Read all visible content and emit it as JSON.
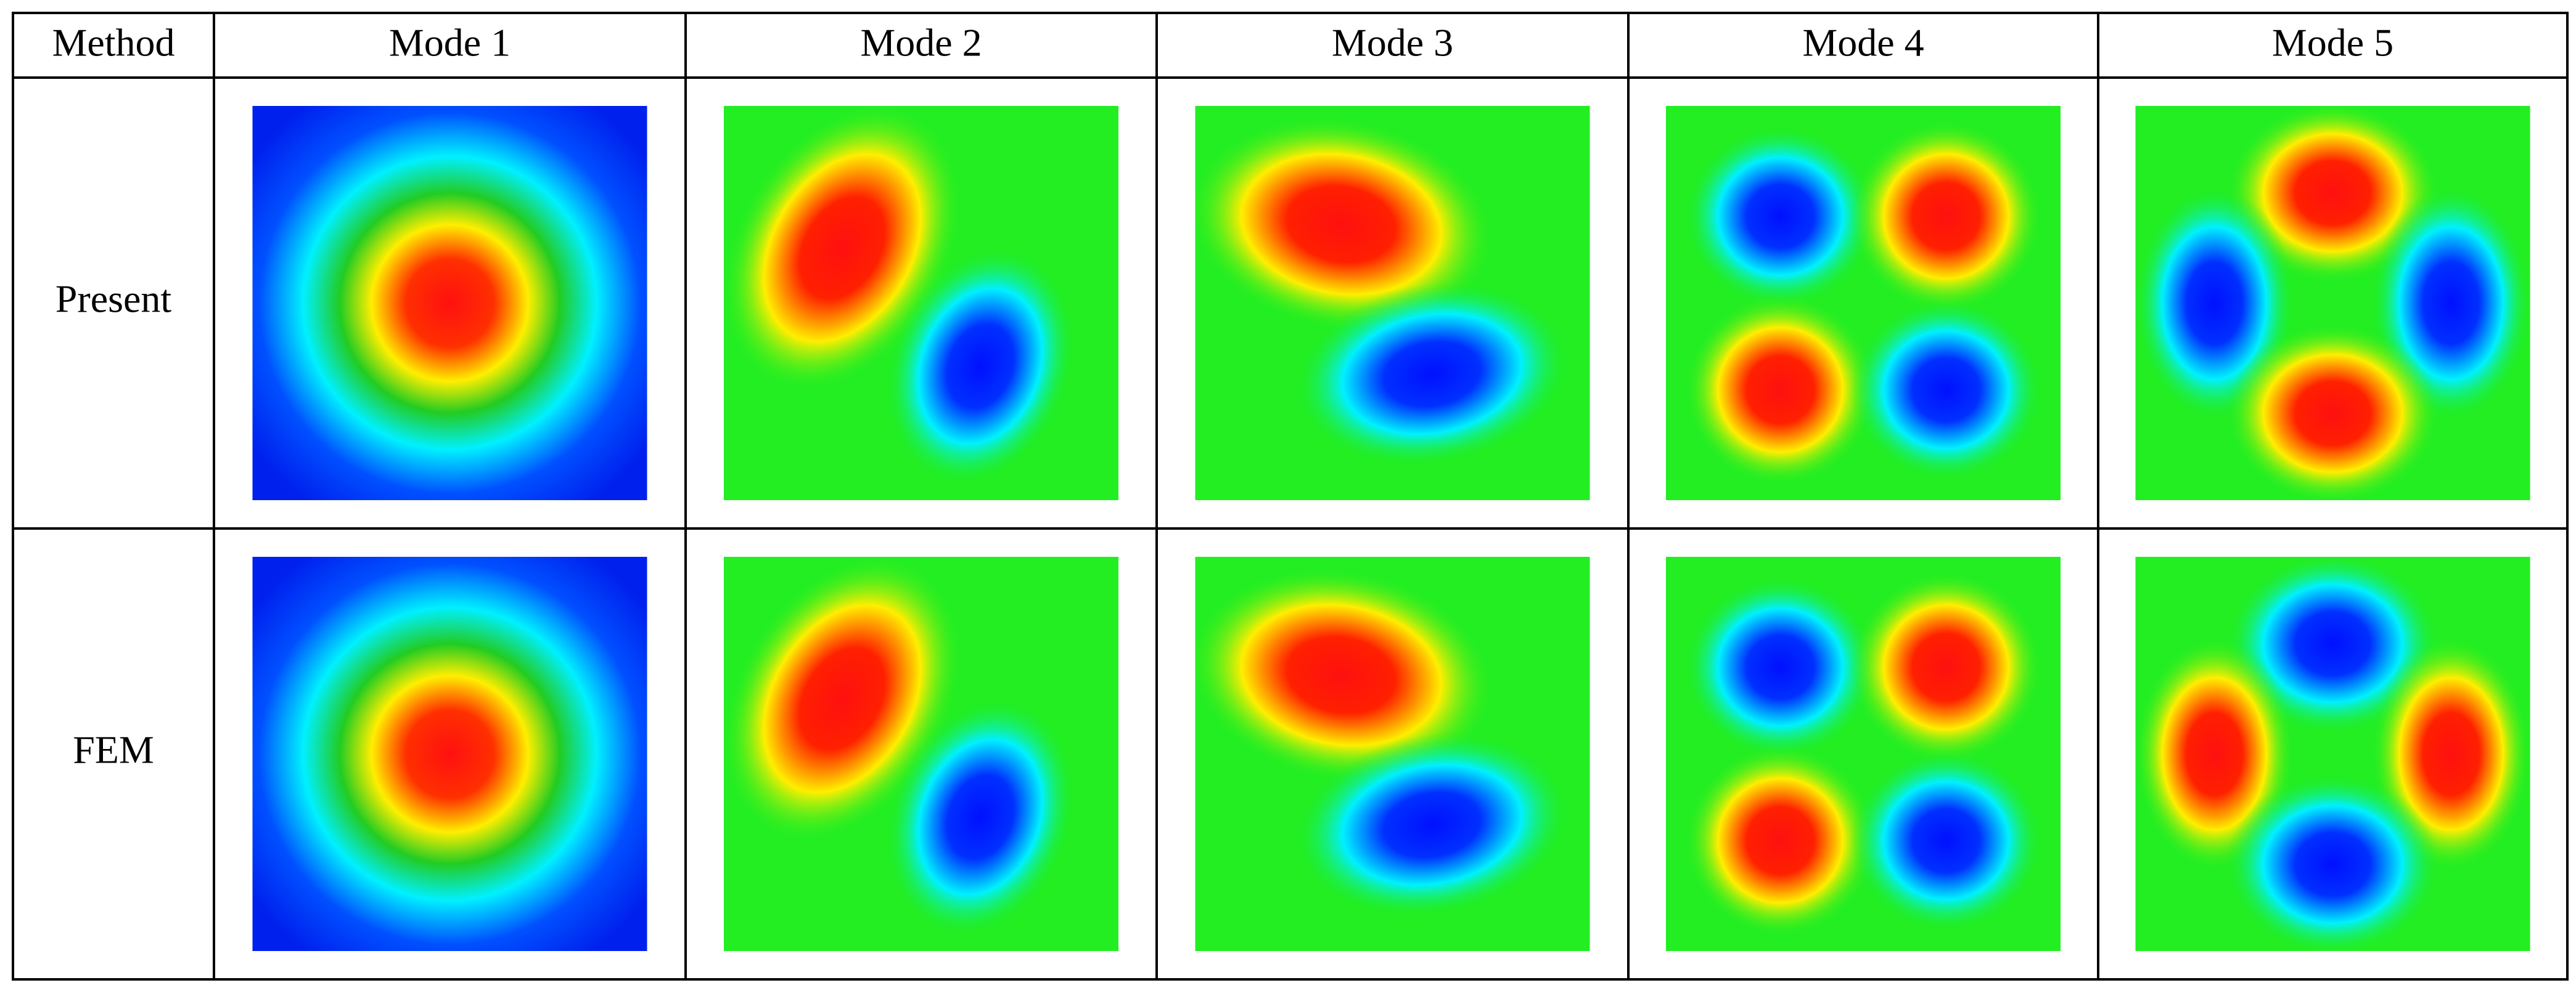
{
  "header": [
    "Method",
    "Mode 1",
    "Mode 2",
    "Mode 3",
    "Mode 4",
    "Mode 5"
  ],
  "rows": [
    {
      "label": "Present"
    },
    {
      "label": "FEM"
    }
  ]
}
